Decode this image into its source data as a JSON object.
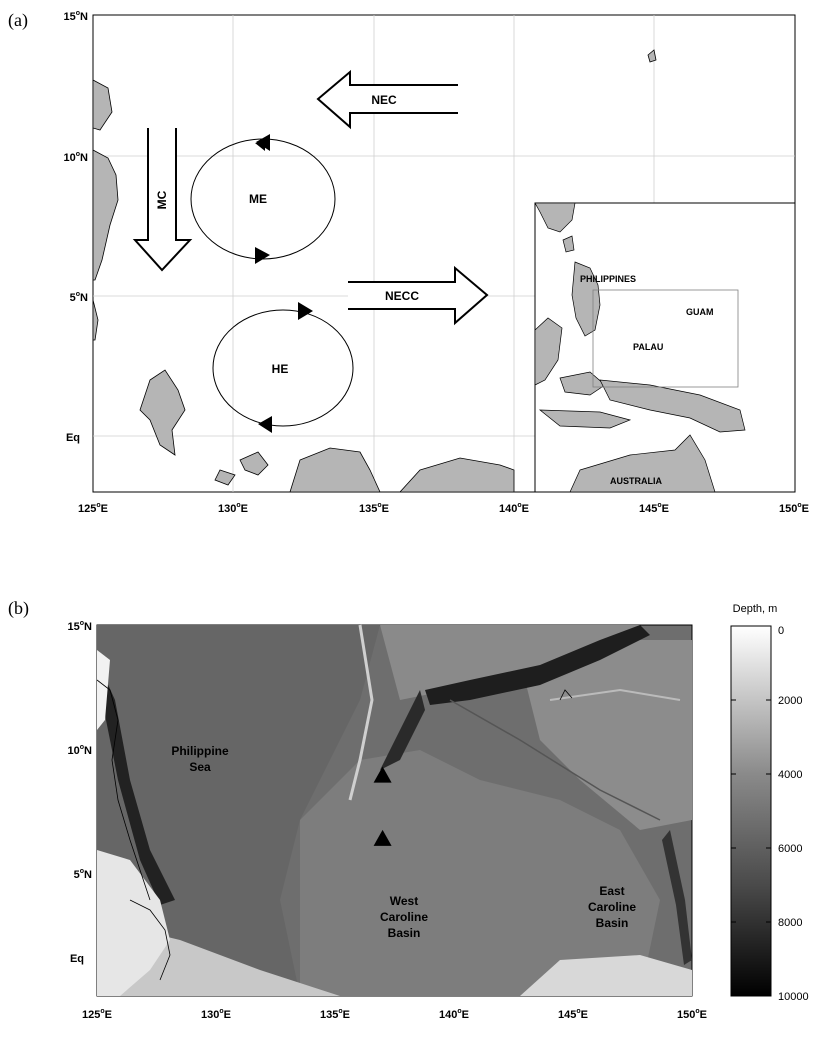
{
  "panel_a": {
    "label": "(a)",
    "lat_ticks": [
      {
        "base": "15",
        "sup": "o",
        "hemi": "N",
        "lat": 15
      },
      {
        "base": "10",
        "sup": "o",
        "hemi": "N",
        "lat": 10
      },
      {
        "base": "5",
        "sup": "o",
        "hemi": "N",
        "lat": 5
      },
      {
        "base": "Eq",
        "sup": "",
        "hemi": "",
        "lat": 0
      }
    ],
    "lon_ticks": [
      {
        "base": "125",
        "sup": "o",
        "hemi": "E",
        "lon": 125
      },
      {
        "base": "130",
        "sup": "o",
        "hemi": "E",
        "lon": 130
      },
      {
        "base": "135",
        "sup": "o",
        "hemi": "E",
        "lon": 135
      },
      {
        "base": "140",
        "sup": "o",
        "hemi": "E",
        "lon": 140
      },
      {
        "base": "145",
        "sup": "o",
        "hemi": "E",
        "lon": 145
      },
      {
        "base": "150",
        "sup": "o",
        "hemi": "E",
        "lon": 150
      }
    ],
    "currents": {
      "nec": "NEC",
      "mc": "MC",
      "necc": "NECC"
    },
    "eddies": {
      "me": "ME",
      "he": "HE"
    },
    "inset": {
      "philippines": "PHILIPPINES",
      "guam": "GUAM",
      "palau": "PALAU",
      "australia": "AUSTRALIA"
    }
  },
  "panel_b": {
    "label": "(b)",
    "lat_ticks": [
      {
        "base": "15",
        "sup": "o",
        "hemi": "N",
        "lat": 15
      },
      {
        "base": "10",
        "sup": "o",
        "hemi": "N",
        "lat": 10
      },
      {
        "base": "5",
        "sup": "o",
        "hemi": "N",
        "lat": 5
      },
      {
        "base": "Eq",
        "sup": "",
        "hemi": "",
        "lat": 0
      }
    ],
    "lon_ticks": [
      {
        "base": "125",
        "sup": "o",
        "hemi": "E",
        "lon": 125
      },
      {
        "base": "130",
        "sup": "o",
        "hemi": "E",
        "lon": 130
      },
      {
        "base": "135",
        "sup": "o",
        "hemi": "E",
        "lon": 135
      },
      {
        "base": "140",
        "sup": "o",
        "hemi": "E",
        "lon": 140
      },
      {
        "base": "145",
        "sup": "o",
        "hemi": "E",
        "lon": 145
      },
      {
        "base": "150",
        "sup": "o",
        "hemi": "E",
        "lon": 150
      }
    ],
    "regions": {
      "philippine_sea_1": "Philippine",
      "philippine_sea_2": "Sea",
      "west_1": "West",
      "west_2": "Caroline",
      "west_3": "Basin",
      "east_1": "East",
      "east_2": "Caroline",
      "east_3": "Basin"
    },
    "colorbar": {
      "title": "Depth, m",
      "ticks": [
        "0",
        "2000",
        "4000",
        "6000",
        "8000",
        "10000"
      ],
      "values": [
        0,
        2000,
        4000,
        6000,
        8000,
        10000
      ],
      "range": [
        0,
        10000
      ]
    },
    "stations": [
      {
        "lon": 137.0,
        "lat": 8.1
      },
      {
        "lon": 137.0,
        "lat": 5.2
      }
    ]
  }
}
